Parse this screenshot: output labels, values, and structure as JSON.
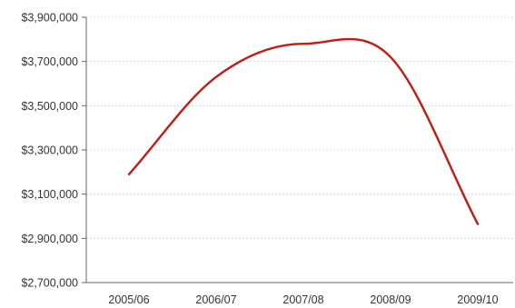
{
  "chart_data": {
    "type": "line",
    "title": "",
    "xlabel": "",
    "ylabel": "",
    "categories": [
      "2005/06",
      "2006/07",
      "2007/08",
      "2008/09",
      "2009/10"
    ],
    "series": [
      {
        "values": [
          3190000,
          3630000,
          3780000,
          3720000,
          2965000
        ],
        "color": "#c41a12"
      }
    ],
    "ylim": [
      2700000,
      3900000
    ],
    "yticks": [
      2700000,
      2900000,
      3100000,
      3300000,
      3500000,
      3700000,
      3900000
    ],
    "ytick_labels": [
      "$2,700,000",
      "$2,900,000",
      "$3,100,000",
      "$3,300,000",
      "$3,500,000",
      "$3,700,000",
      "$3,900,000"
    ],
    "grid": true,
    "legend": "none"
  }
}
